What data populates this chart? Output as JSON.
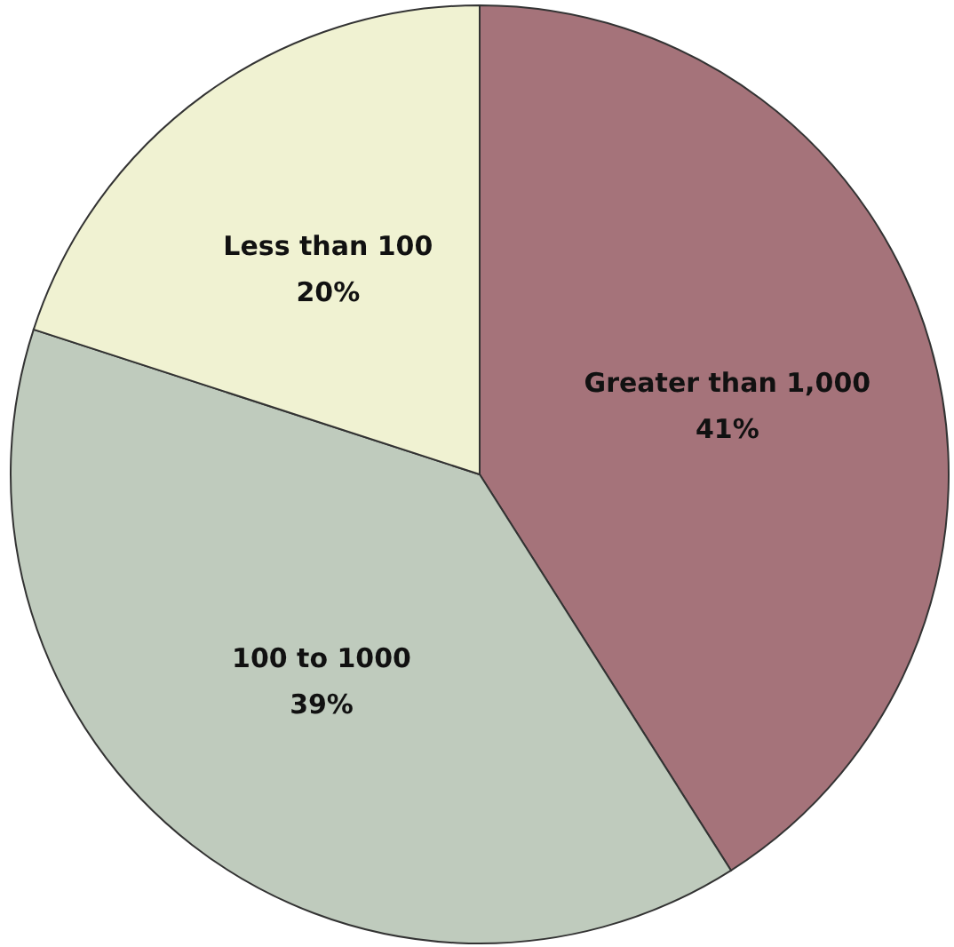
{
  "chart_data": {
    "type": "pie",
    "categories": [
      "Greater than 1,000",
      "100 to 1000",
      "Less than 100"
    ],
    "values": [
      41,
      39,
      20
    ],
    "value_labels": [
      "41%",
      "39%",
      "20%"
    ],
    "colors": [
      "#a5737a",
      "#bfcbbd",
      "#f0f2d2"
    ]
  }
}
